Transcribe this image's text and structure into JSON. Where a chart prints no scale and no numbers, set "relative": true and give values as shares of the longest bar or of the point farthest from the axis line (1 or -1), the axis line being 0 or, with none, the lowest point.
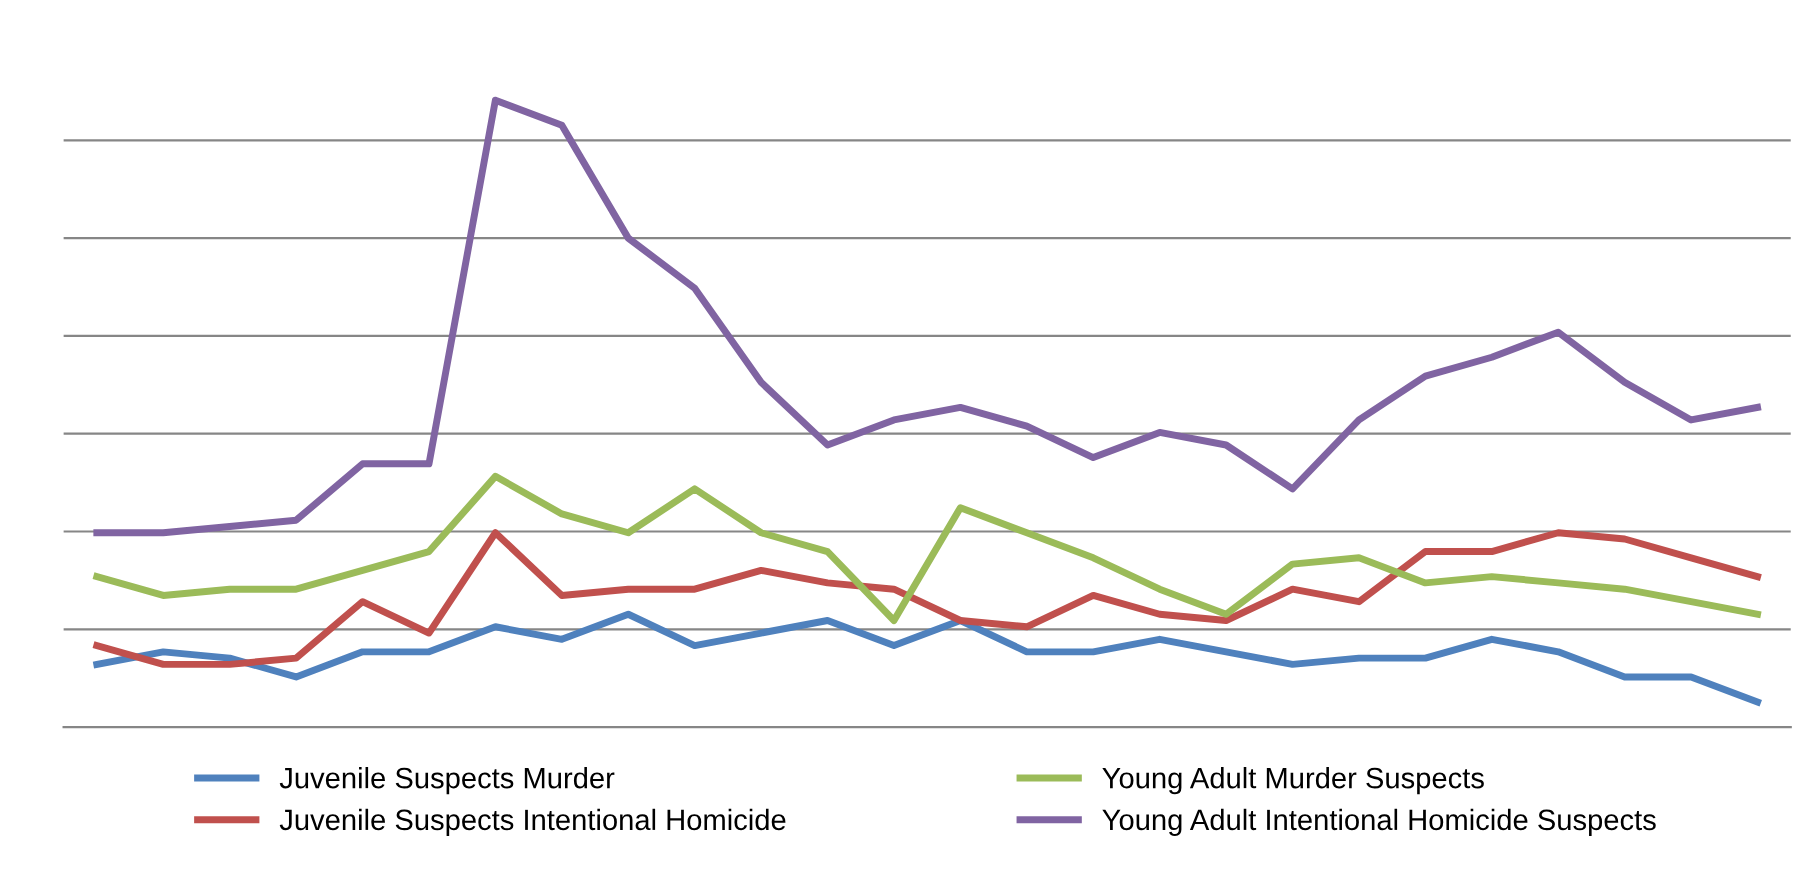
{
  "chart_data": {
    "type": "line",
    "relative": true,
    "grid": "y",
    "legend": "bottom",
    "tick_labels": false,
    "marker": "none",
    "line_style": "solid",
    "categories": [
      null,
      null,
      null,
      null,
      null,
      null,
      null,
      null,
      null,
      null,
      null,
      null,
      null,
      null,
      null,
      null,
      null,
      null,
      null,
      null,
      null,
      null,
      null,
      null,
      null,
      null
    ],
    "series": [
      {
        "name": "Juvenile Suspects Murder",
        "color": "#4f81bd",
        "values": [
          0.1,
          0.12,
          0.11,
          0.08,
          0.12,
          0.12,
          0.16,
          0.14,
          0.18,
          0.13,
          0.15,
          0.17,
          0.13,
          0.17,
          0.12,
          0.12,
          0.14,
          0.12,
          0.1,
          0.11,
          0.11,
          0.14,
          0.12,
          0.08,
          0.08,
          0.04
        ]
      },
      {
        "name": "Juvenile Suspects Intentional Homicide",
        "color": "#c0504d",
        "values": [
          0.13,
          0.1,
          0.1,
          0.11,
          0.2,
          0.15,
          0.31,
          0.21,
          0.22,
          0.22,
          0.25,
          0.23,
          0.22,
          0.17,
          0.16,
          0.21,
          0.18,
          0.17,
          0.22,
          0.2,
          0.28,
          0.28,
          0.31,
          0.3,
          0.27,
          0.24
        ]
      },
      {
        "name": "Young Adult Murder Suspects",
        "color": "#9bbb59",
        "values": [
          0.24,
          0.21,
          0.22,
          0.22,
          0.25,
          0.28,
          0.4,
          0.34,
          0.31,
          0.38,
          0.31,
          0.28,
          0.17,
          0.35,
          0.31,
          0.27,
          0.22,
          0.18,
          0.26,
          0.27,
          0.23,
          0.24,
          0.23,
          0.22,
          0.2,
          0.18
        ]
      },
      {
        "name": "Young Adult Intentional Homicide Suspects",
        "color": "#8064a2",
        "values": [
          0.31,
          0.31,
          0.32,
          0.33,
          0.42,
          0.42,
          1.0,
          0.96,
          0.78,
          0.7,
          0.55,
          0.45,
          0.49,
          0.51,
          0.48,
          0.43,
          0.47,
          0.45,
          0.38,
          0.49,
          0.56,
          0.59,
          0.63,
          0.55,
          0.49,
          0.51
        ]
      }
    ]
  }
}
